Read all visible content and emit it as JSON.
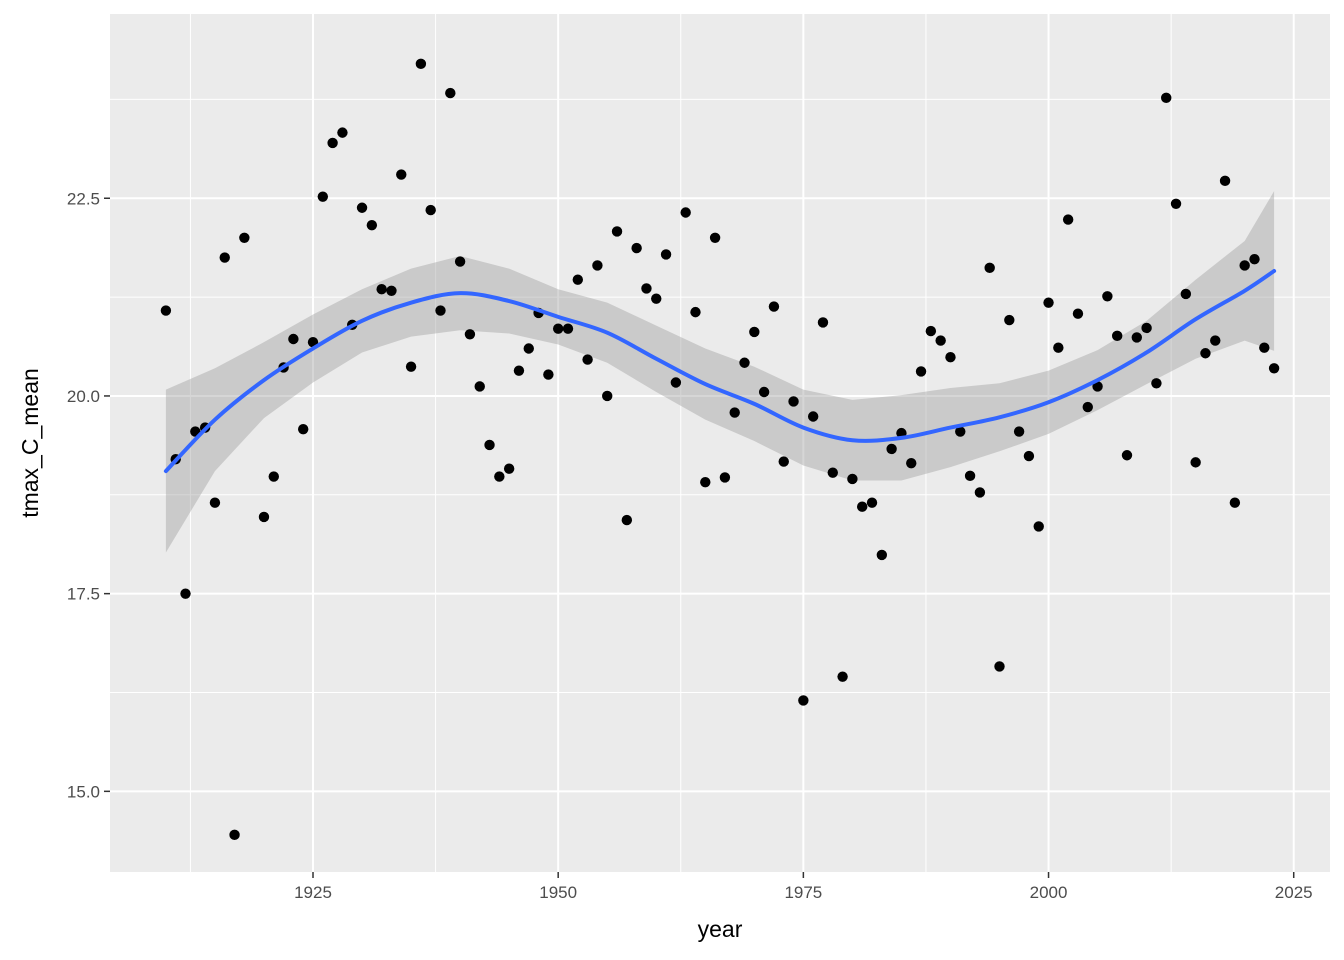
{
  "chart_data": {
    "type": "scatter",
    "xlabel": "year",
    "ylabel": "tmax_C_mean",
    "xlim": [
      1904.3,
      2028.7
    ],
    "ylim": [
      13.98,
      24.83
    ],
    "x_ticks": [
      1925,
      1950,
      1975,
      2000,
      2025
    ],
    "x_tick_labels": [
      "1925",
      "1950",
      "1975",
      "2000",
      "2025"
    ],
    "y_ticks": [
      15.0,
      17.5,
      20.0,
      22.5
    ],
    "y_tick_labels": [
      "15.0",
      "17.5",
      "20.0",
      "22.5"
    ],
    "grid": true,
    "legend": "none",
    "colors": {
      "panel_background": "#ebebeb",
      "grid": "#ffffff",
      "points": "#000000",
      "smooth_line": "#3366ff",
      "confidence_band": "#999999"
    },
    "points": [
      [
        1910,
        21.08
      ],
      [
        1911,
        19.2
      ],
      [
        1912,
        17.5
      ],
      [
        1913,
        19.55
      ],
      [
        1914,
        19.6
      ],
      [
        1915,
        18.65
      ],
      [
        1916,
        21.75
      ],
      [
        1917,
        14.45
      ],
      [
        1918,
        22.0
      ],
      [
        1920,
        18.47
      ],
      [
        1921,
        18.98
      ],
      [
        1922,
        20.36
      ],
      [
        1923,
        20.72
      ],
      [
        1924,
        19.58
      ],
      [
        1925,
        20.68
      ],
      [
        1926,
        22.52
      ],
      [
        1927,
        23.2
      ],
      [
        1928,
        23.33
      ],
      [
        1929,
        20.9
      ],
      [
        1930,
        22.38
      ],
      [
        1931,
        22.16
      ],
      [
        1932,
        21.35
      ],
      [
        1933,
        21.33
      ],
      [
        1934,
        22.8
      ],
      [
        1935,
        20.37
      ],
      [
        1936,
        24.2
      ],
      [
        1937,
        22.35
      ],
      [
        1938,
        21.08
      ],
      [
        1939,
        23.83
      ],
      [
        1940,
        21.7
      ],
      [
        1941,
        20.78
      ],
      [
        1942,
        20.12
      ],
      [
        1943,
        19.38
      ],
      [
        1944,
        18.98
      ],
      [
        1945,
        19.08
      ],
      [
        1946,
        20.32
      ],
      [
        1947,
        20.6
      ],
      [
        1948,
        21.05
      ],
      [
        1949,
        20.27
      ],
      [
        1950,
        20.85
      ],
      [
        1951,
        20.85
      ],
      [
        1952,
        21.47
      ],
      [
        1953,
        20.46
      ],
      [
        1954,
        21.65
      ],
      [
        1955,
        20.0
      ],
      [
        1956,
        22.08
      ],
      [
        1957,
        18.43
      ],
      [
        1958,
        21.87
      ],
      [
        1959,
        21.36
      ],
      [
        1960,
        21.23
      ],
      [
        1961,
        21.79
      ],
      [
        1962,
        20.17
      ],
      [
        1963,
        22.32
      ],
      [
        1964,
        21.06
      ],
      [
        1965,
        18.91
      ],
      [
        1966,
        22.0
      ],
      [
        1967,
        18.97
      ],
      [
        1968,
        19.79
      ],
      [
        1969,
        20.42
      ],
      [
        1970,
        20.81
      ],
      [
        1971,
        20.05
      ],
      [
        1972,
        21.13
      ],
      [
        1973,
        19.17
      ],
      [
        1974,
        19.93
      ],
      [
        1975,
        16.15
      ],
      [
        1976,
        19.74
      ],
      [
        1977,
        20.93
      ],
      [
        1978,
        19.03
      ],
      [
        1979,
        16.45
      ],
      [
        1980,
        18.95
      ],
      [
        1981,
        18.6
      ],
      [
        1982,
        18.65
      ],
      [
        1983,
        17.99
      ],
      [
        1984,
        19.33
      ],
      [
        1985,
        19.53
      ],
      [
        1986,
        19.15
      ],
      [
        1987,
        20.31
      ],
      [
        1988,
        20.82
      ],
      [
        1989,
        20.7
      ],
      [
        1990,
        20.49
      ],
      [
        1991,
        19.55
      ],
      [
        1992,
        18.99
      ],
      [
        1993,
        18.78
      ],
      [
        1994,
        21.62
      ],
      [
        1995,
        16.58
      ],
      [
        1996,
        20.96
      ],
      [
        1997,
        19.55
      ],
      [
        1998,
        19.24
      ],
      [
        1999,
        18.35
      ],
      [
        2000,
        21.18
      ],
      [
        2001,
        20.61
      ],
      [
        2002,
        22.23
      ],
      [
        2003,
        21.04
      ],
      [
        2004,
        19.86
      ],
      [
        2005,
        20.12
      ],
      [
        2006,
        21.26
      ],
      [
        2007,
        20.76
      ],
      [
        2008,
        19.25
      ],
      [
        2009,
        20.74
      ],
      [
        2010,
        20.86
      ],
      [
        2011,
        20.16
      ],
      [
        2012,
        23.77
      ],
      [
        2013,
        22.43
      ],
      [
        2014,
        21.29
      ],
      [
        2015,
        19.16
      ],
      [
        2016,
        20.54
      ],
      [
        2017,
        20.7
      ],
      [
        2018,
        22.72
      ],
      [
        2019,
        18.65
      ],
      [
        2020,
        21.65
      ],
      [
        2021,
        21.73
      ],
      [
        2022,
        20.61
      ],
      [
        2023,
        20.35
      ]
    ],
    "smooth": {
      "x": [
        1910,
        1915,
        1920,
        1925,
        1930,
        1935,
        1940,
        1945,
        1950,
        1955,
        1960,
        1965,
        1970,
        1975,
        1980,
        1985,
        1990,
        1995,
        2000,
        2005,
        2010,
        2015,
        2020,
        2023
      ],
      "y": [
        19.05,
        19.7,
        20.2,
        20.6,
        20.95,
        21.18,
        21.3,
        21.2,
        21.0,
        20.8,
        20.47,
        20.15,
        19.9,
        19.6,
        19.44,
        19.47,
        19.6,
        19.73,
        19.92,
        20.2,
        20.55,
        20.97,
        21.33,
        21.58
      ],
      "lower": [
        18.02,
        19.05,
        19.72,
        20.17,
        20.55,
        20.75,
        20.83,
        20.79,
        20.65,
        20.42,
        20.05,
        19.7,
        19.43,
        19.12,
        18.93,
        18.93,
        19.1,
        19.3,
        19.52,
        19.82,
        20.15,
        20.47,
        20.7,
        20.57
      ]
    }
  }
}
